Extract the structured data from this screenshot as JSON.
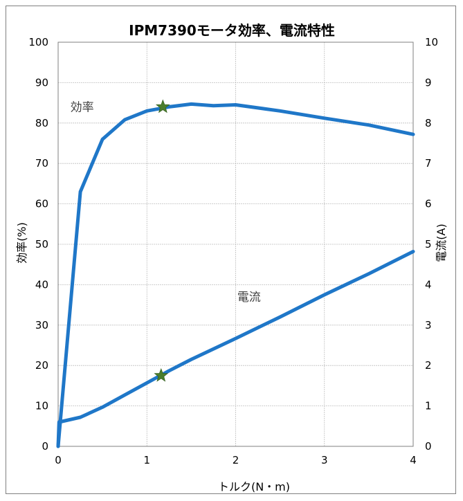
{
  "chart_data": {
    "type": "line",
    "title": "IPM7390モータ効率、電流特性",
    "xlabel": "トルク(N・m)",
    "ylabel_left": "効率(%)",
    "ylabel_right": "電流(A)",
    "xlim": [
      0,
      4
    ],
    "ylim_left": [
      0,
      100
    ],
    "ylim_right": [
      0,
      10
    ],
    "x_ticks": [
      "0",
      "1",
      "2",
      "3",
      "4"
    ],
    "y_left_ticks": [
      "0",
      "10",
      "20",
      "30",
      "40",
      "50",
      "60",
      "70",
      "80",
      "90",
      "100"
    ],
    "y_right_ticks": [
      "0",
      "1",
      "2",
      "3",
      "4",
      "5",
      "6",
      "7",
      "8",
      "9",
      "10"
    ],
    "grid": true,
    "legend": "none",
    "series": [
      {
        "name": "効率",
        "axis": "left",
        "color": "#1f77c8",
        "points": [
          [
            0,
            0
          ],
          [
            0.25,
            63
          ],
          [
            0.5,
            76
          ],
          [
            0.75,
            80.8
          ],
          [
            1.0,
            83
          ],
          [
            1.25,
            84
          ],
          [
            1.5,
            84.7
          ],
          [
            1.75,
            84.3
          ],
          [
            2.0,
            84.5
          ],
          [
            2.5,
            83
          ],
          [
            3.0,
            81.2
          ],
          [
            3.5,
            79.5
          ],
          [
            4.0,
            77.2
          ]
        ]
      },
      {
        "name": "電流",
        "axis": "right",
        "color": "#1f77c8",
        "points": [
          [
            0,
            0
          ],
          [
            0.01,
            0.6
          ],
          [
            0.25,
            0.72
          ],
          [
            0.5,
            0.97
          ],
          [
            0.75,
            1.27
          ],
          [
            1.0,
            1.57
          ],
          [
            1.25,
            1.87
          ],
          [
            1.5,
            2.15
          ],
          [
            2.0,
            2.67
          ],
          [
            2.5,
            3.2
          ],
          [
            3.0,
            3.75
          ],
          [
            3.5,
            4.27
          ],
          [
            4.0,
            4.82
          ]
        ]
      }
    ],
    "markers": [
      {
        "series": "効率",
        "x": 1.18,
        "y": 84,
        "shape": "star",
        "color": "#4a7d2c"
      },
      {
        "series": "電流",
        "x": 1.16,
        "y": 1.75,
        "shape": "star",
        "color": "#4a7d2c"
      }
    ],
    "annotations": [
      {
        "text": "効率",
        "x": 0.27,
        "y": 83,
        "axis": "left"
      },
      {
        "text": "電流",
        "x": 2.15,
        "y": 3.6,
        "axis": "right"
      }
    ]
  }
}
